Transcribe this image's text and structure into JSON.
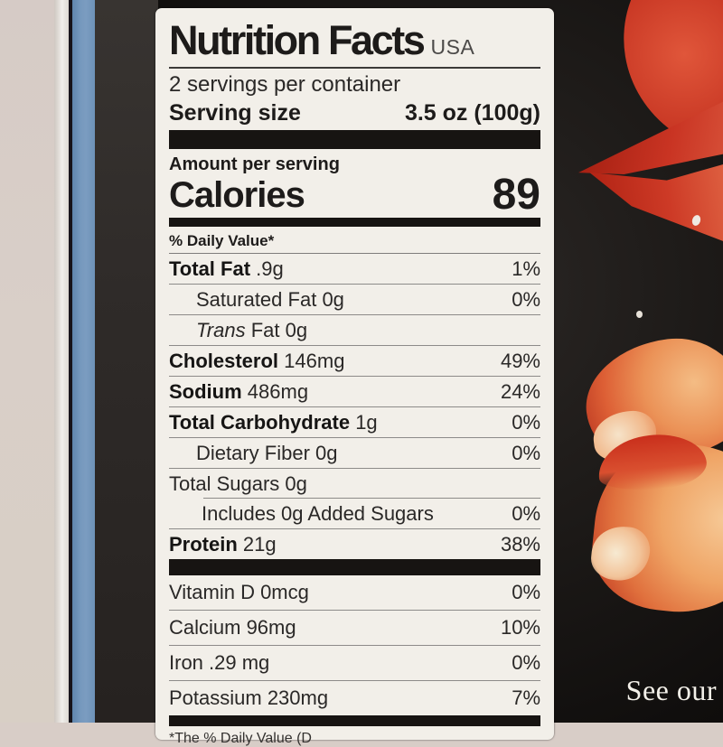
{
  "scene": {
    "caption": "See our",
    "colors": {
      "backdrop": "#d8cdc7",
      "edge_blue": "#7598bd",
      "package_black": "#1d1a18",
      "label_bg": "#f2efe9",
      "lobster_red": "#c22f1e",
      "meat_orange": "#efa465"
    }
  },
  "label": {
    "title": "Nutrition Facts",
    "region": "USA",
    "servings_per_container": "2 servings per container",
    "serving_size_label": "Serving size",
    "serving_size_value": "3.5 oz (100g)",
    "amount_per_serving": "Amount per serving",
    "calories_label": "Calories",
    "calories_value": "89",
    "daily_value_header": "% Daily Value*",
    "rows": [
      {
        "name": "Total Fat",
        "amount": ".9g",
        "dv": "1%"
      },
      {
        "name": "Saturated Fat",
        "amount": "0g",
        "dv": "0%"
      },
      {
        "name": "Trans",
        "amount": "Fat 0g",
        "dv": ""
      },
      {
        "name": "Cholesterol",
        "amount": "146mg",
        "dv": "49%"
      },
      {
        "name": "Sodium",
        "amount": "486mg",
        "dv": "24%"
      },
      {
        "name": "Total Carbohydrate",
        "amount": "1g",
        "dv": "0%"
      },
      {
        "name": "Dietary Fiber",
        "amount": "0g",
        "dv": "0%"
      },
      {
        "name": "Total Sugars",
        "amount": "0g",
        "dv": ""
      },
      {
        "name": "",
        "amount": "Includes 0g Added Sugars",
        "dv": "0%"
      },
      {
        "name": "Protein",
        "amount": "21g",
        "dv": "38%"
      }
    ],
    "micronutrients": [
      {
        "name": "Vitamin D 0mcg",
        "dv": "0%"
      },
      {
        "name": "Calcium 96mg",
        "dv": "10%"
      },
      {
        "name": "Iron .29 mg",
        "dv": "0%"
      },
      {
        "name": "Potassium 230mg",
        "dv": "7%"
      }
    ],
    "footnote_partial": "*The % Daily Value (D"
  }
}
